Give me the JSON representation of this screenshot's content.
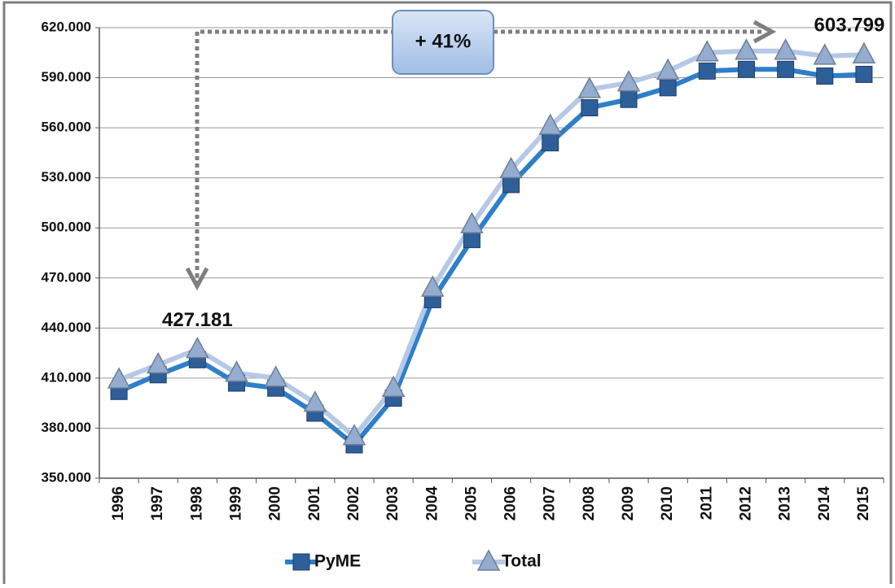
{
  "chart_data": {
    "type": "line",
    "categories": [
      "1996",
      "1997",
      "1998",
      "1999",
      "2000",
      "2001",
      "2002",
      "2003",
      "2004",
      "2005",
      "2006",
      "2007",
      "2008",
      "2009",
      "2010",
      "2011",
      "2012",
      "2013",
      "2014",
      "2015"
    ],
    "series": [
      {
        "name": "PyME",
        "color": "#2e7fc8",
        "marker_color": "#2f5f98",
        "values": [
          402000,
          412000,
          421000,
          407000,
          404000,
          389000,
          370000,
          398000,
          457000,
          493000,
          526000,
          551000,
          572000,
          577000,
          584000,
          594000,
          595000,
          595000,
          591000,
          592000
        ]
      },
      {
        "name": "Total",
        "color": "#b5c9e6",
        "marker_color": "#94acd0",
        "values": [
          409000,
          418000,
          427181,
          413000,
          410000,
          395000,
          375000,
          404000,
          464000,
          502000,
          535000,
          561000,
          583000,
          587000,
          594000,
          605000,
          606000,
          606000,
          603000,
          603799
        ],
        "value_labels": [
          null,
          null,
          "427.181",
          null,
          null,
          null,
          null,
          null,
          null,
          null,
          null,
          null,
          null,
          null,
          null,
          null,
          null,
          null,
          null,
          "603.799"
        ]
      }
    ],
    "annotation": "+ 41%",
    "ylim": [
      350000,
      620000
    ],
    "yticks": [
      {
        "value": 350000,
        "label": "350.000"
      },
      {
        "value": 380000,
        "label": "380.000"
      },
      {
        "value": 410000,
        "label": "410.000"
      },
      {
        "value": 440000,
        "label": "440.000"
      },
      {
        "value": 470000,
        "label": "470.000"
      },
      {
        "value": 500000,
        "label": "500.000"
      },
      {
        "value": 530000,
        "label": "530.000"
      },
      {
        "value": 560000,
        "label": "560.000"
      },
      {
        "value": 590000,
        "label": "590.000"
      },
      {
        "value": 620000,
        "label": "620.000"
      }
    ],
    "grid": true,
    "legend": "bottom"
  }
}
